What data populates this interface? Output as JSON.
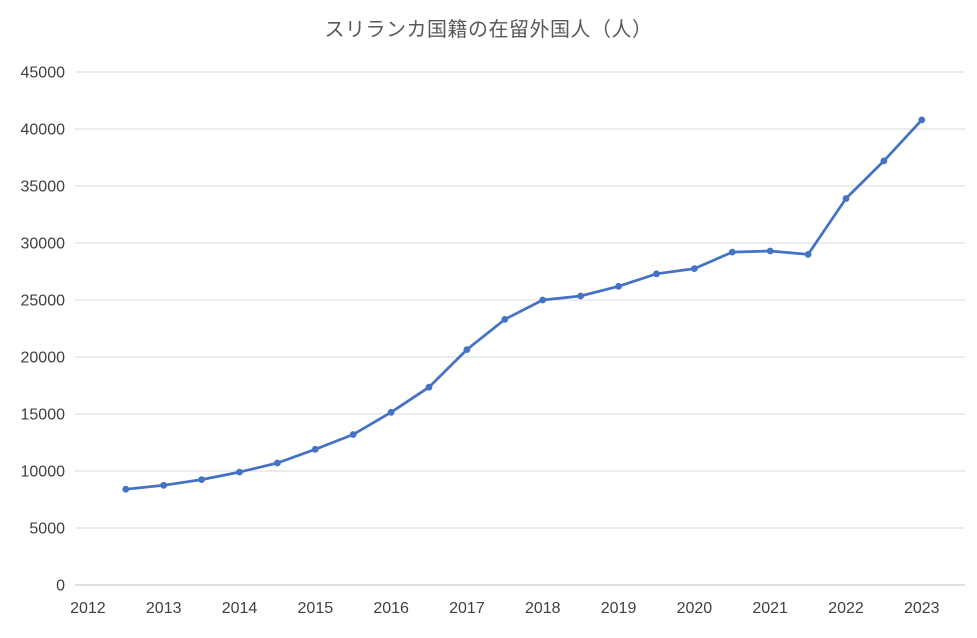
{
  "page": {
    "background_color": "#ffffff"
  },
  "chart_data": {
    "type": "line",
    "title": "スリランカ国籍の在留外国人（人）",
    "xlabel": "",
    "ylabel": "",
    "legend": "none",
    "grid": "horizontal",
    "line_color": "#4472c4",
    "marker": "circle",
    "marker_color": "#4472c4",
    "xlim": [
      2011.83,
      2023.57
    ],
    "ylim": [
      0,
      45000
    ],
    "x_ticks": [
      2012,
      2013,
      2014,
      2015,
      2016,
      2017,
      2018,
      2019,
      2020,
      2021,
      2022,
      2023
    ],
    "y_ticks": [
      0,
      5000,
      10000,
      15000,
      20000,
      25000,
      30000,
      35000,
      40000,
      45000
    ],
    "series": [
      {
        "name": "スリランカ国籍の在留外国人",
        "x": [
          2012.5,
          2013.0,
          2013.5,
          2014.0,
          2014.5,
          2015.0,
          2015.5,
          2016.0,
          2016.5,
          2017.0,
          2017.5,
          2018.0,
          2018.5,
          2019.0,
          2019.5,
          2020.0,
          2020.5,
          2021.0,
          2021.5,
          2022.0,
          2022.5,
          2023.0
        ],
        "values": [
          8400,
          8750,
          9250,
          9900,
          10700,
          11900,
          13200,
          15150,
          17350,
          20650,
          23300,
          25000,
          25350,
          26200,
          27300,
          27750,
          29200,
          29300,
          29000,
          33900,
          37200,
          40800
        ]
      }
    ]
  }
}
